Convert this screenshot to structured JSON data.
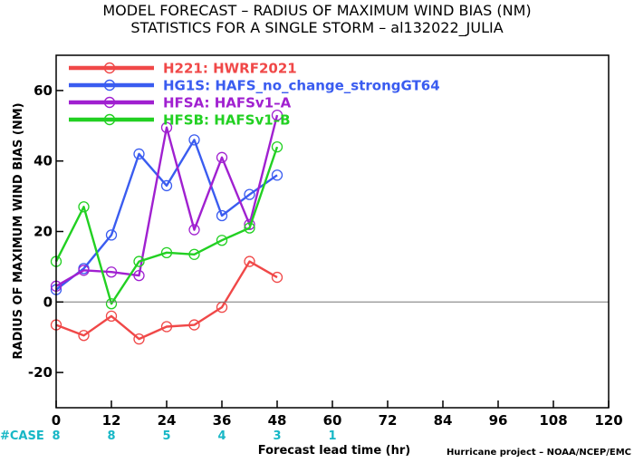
{
  "chart_data": {
    "type": "line",
    "title_line1": "MODEL FORECAST – RADIUS OF MAXIMUM WIND BIAS (NM)",
    "title_line2": "STATISTICS FOR A SINGLE STORM – al132022_JULIA",
    "xlabel": "Forecast lead time (hr)",
    "ylabel": "RADIUS OF MAXIMUM WIND BIAS (NM)",
    "xlim": [
      0,
      120
    ],
    "ylim": [
      -30,
      70
    ],
    "xticks": [
      0,
      12,
      24,
      36,
      48,
      60,
      72,
      84,
      96,
      108,
      120
    ],
    "yticks": [
      -20,
      0,
      20,
      40,
      60
    ],
    "reference_line": 0,
    "case_label": "#CASE",
    "case_counts": [
      {
        "x": 0,
        "n": "8"
      },
      {
        "x": 12,
        "n": "8"
      },
      {
        "x": 24,
        "n": "5"
      },
      {
        "x": 36,
        "n": "4"
      },
      {
        "x": 48,
        "n": "3"
      },
      {
        "x": 60,
        "n": "1"
      }
    ],
    "credit": "Hurricane project – NOAA/NCEP/EMC",
    "series": [
      {
        "name": "H221",
        "desc": "HWRF2021",
        "color": "#f04848",
        "x": [
          0,
          6,
          12,
          18,
          24,
          30,
          36,
          42,
          48
        ],
        "y": [
          -6.5,
          -9.5,
          -4,
          -10.5,
          -7,
          -6.5,
          -1.5,
          11.5,
          7
        ]
      },
      {
        "name": "HG1S",
        "desc": "HAFS_no_change_strongGT64",
        "color": "#3a5cf0",
        "x": [
          0,
          6,
          12,
          18,
          24,
          30,
          36,
          42,
          48
        ],
        "y": [
          3.5,
          9.5,
          19,
          42,
          33,
          46,
          24.5,
          30.5,
          36
        ]
      },
      {
        "name": "HFSA",
        "desc": "HAFSv1–A",
        "color": "#a020d0",
        "x": [
          0,
          6,
          12,
          18,
          24,
          30,
          36,
          42,
          48
        ],
        "y": [
          4.5,
          9,
          8.5,
          7.5,
          49.5,
          20.5,
          41,
          22,
          53
        ]
      },
      {
        "name": "HFSB",
        "desc": "HAFSv1–B",
        "color": "#22d022",
        "x": [
          0,
          6,
          12,
          18,
          24,
          30,
          36,
          42,
          48
        ],
        "y": [
          11.5,
          27,
          -0.5,
          11.5,
          14,
          13.5,
          17.5,
          21,
          44
        ]
      }
    ]
  }
}
